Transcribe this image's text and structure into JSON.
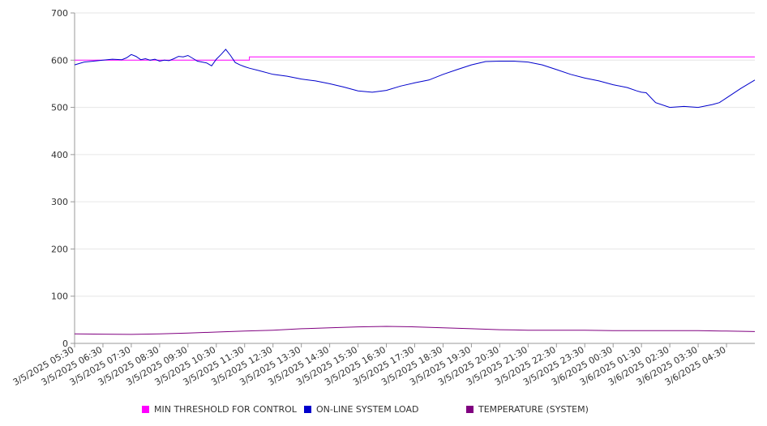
{
  "chart_data": {
    "type": "line",
    "ylim": [
      0,
      700
    ],
    "yticks": [
      0,
      100,
      200,
      300,
      400,
      500,
      600,
      700
    ],
    "grid": true,
    "legend_position": "bottom",
    "x_labels": [
      "3/5/2025 05:30",
      "3/5/2025 06:30",
      "3/5/2025 07:30",
      "3/5/2025 08:30",
      "3/5/2025 09:30",
      "3/5/2025 10:30",
      "3/5/2025 11:30",
      "3/5/2025 12:30",
      "3/5/2025 13:30",
      "3/5/2025 14:30",
      "3/5/2025 15:30",
      "3/5/2025 16:30",
      "3/5/2025 17:30",
      "3/5/2025 18:30",
      "3/5/2025 19:30",
      "3/5/2025 20:30",
      "3/5/2025 21:30",
      "3/5/2025 22:30",
      "3/5/2025 23:30",
      "3/6/2025 00:30",
      "3/6/2025 01:30",
      "3/6/2025 02:30",
      "3/6/2025 03:30",
      "3/6/2025 04:30"
    ],
    "x_range": [
      "3/5/2025 05:30",
      "3/6/2025 05:30"
    ],
    "series": [
      {
        "name": "MIN THRESHOLD FOR CONTROL",
        "color": "#ff00ff",
        "x": [
          "3/5/2025 05:30",
          "3/5/2025 11:40",
          "3/5/2025 11:40",
          "3/6/2025 05:30"
        ],
        "y": [
          600,
          600,
          607,
          607
        ]
      },
      {
        "name": "ON-LINE SYSTEM LOAD",
        "color": "#0000cc",
        "x": [
          "3/5/2025 05:30",
          "3/5/2025 05:50",
          "3/5/2025 06:10",
          "3/5/2025 06:30",
          "3/5/2025 06:50",
          "3/5/2025 07:10",
          "3/5/2025 07:20",
          "3/5/2025 07:30",
          "3/5/2025 07:40",
          "3/5/2025 07:50",
          "3/5/2025 08:00",
          "3/5/2025 08:10",
          "3/5/2025 08:20",
          "3/5/2025 08:30",
          "3/5/2025 08:40",
          "3/5/2025 08:50",
          "3/5/2025 09:00",
          "3/5/2025 09:10",
          "3/5/2025 09:20",
          "3/5/2025 09:30",
          "3/5/2025 09:40",
          "3/5/2025 09:50",
          "3/5/2025 10:00",
          "3/5/2025 10:10",
          "3/5/2025 10:20",
          "3/5/2025 10:30",
          "3/5/2025 10:40",
          "3/5/2025 10:50",
          "3/5/2025 11:00",
          "3/5/2025 11:10",
          "3/5/2025 11:20",
          "3/5/2025 11:30",
          "3/5/2025 11:40",
          "3/5/2025 12:00",
          "3/5/2025 12:30",
          "3/5/2025 13:00",
          "3/5/2025 13:30",
          "3/5/2025 14:00",
          "3/5/2025 14:30",
          "3/5/2025 15:00",
          "3/5/2025 15:30",
          "3/5/2025 16:00",
          "3/5/2025 16:30",
          "3/5/2025 17:00",
          "3/5/2025 17:30",
          "3/5/2025 18:00",
          "3/5/2025 18:30",
          "3/5/2025 19:00",
          "3/5/2025 19:30",
          "3/5/2025 20:00",
          "3/5/2025 20:30",
          "3/5/2025 21:00",
          "3/5/2025 21:30",
          "3/5/2025 22:00",
          "3/5/2025 22:30",
          "3/5/2025 23:00",
          "3/5/2025 23:30",
          "3/6/2025 00:00",
          "3/6/2025 00:30",
          "3/6/2025 01:00",
          "3/6/2025 01:20",
          "3/6/2025 01:30",
          "3/6/2025 01:40",
          "3/6/2025 02:00",
          "3/6/2025 02:30",
          "3/6/2025 03:00",
          "3/6/2025 03:30",
          "3/6/2025 04:00",
          "3/6/2025 04:15",
          "3/6/2025 04:30",
          "3/6/2025 05:00",
          "3/6/2025 05:30"
        ],
        "y": [
          590,
          596,
          598,
          600,
          602,
          601,
          605,
          612,
          608,
          601,
          603,
          600,
          602,
          598,
          600,
          599,
          603,
          608,
          607,
          610,
          604,
          598,
          596,
          594,
          588,
          602,
          612,
          623,
          610,
          595,
          590,
          586,
          583,
          578,
          570,
          566,
          560,
          556,
          550,
          543,
          535,
          532,
          536,
          545,
          552,
          558,
          570,
          580,
          590,
          597,
          598,
          598,
          596,
          590,
          580,
          570,
          562,
          556,
          548,
          542,
          535,
          532,
          531,
          510,
          500,
          502,
          500,
          506,
          510,
          520,
          540,
          558
        ]
      },
      {
        "name": "TEMPERATURE (SYSTEM)",
        "color": "#800080",
        "x": [
          "3/5/2025 05:30",
          "3/5/2025 07:30",
          "3/5/2025 08:30",
          "3/5/2025 09:30",
          "3/5/2025 10:30",
          "3/5/2025 11:30",
          "3/5/2025 12:30",
          "3/5/2025 13:30",
          "3/5/2025 14:30",
          "3/5/2025 15:30",
          "3/5/2025 16:30",
          "3/5/2025 17:30",
          "3/5/2025 18:30",
          "3/5/2025 19:30",
          "3/5/2025 20:30",
          "3/5/2025 21:30",
          "3/5/2025 22:30",
          "3/5/2025 23:30",
          "3/6/2025 00:30",
          "3/6/2025 01:30",
          "3/6/2025 02:30",
          "3/6/2025 03:30",
          "3/6/2025 04:30",
          "3/6/2025 05:30"
        ],
        "y": [
          20,
          19,
          20,
          22,
          24,
          26,
          28,
          31,
          33,
          35,
          36,
          35,
          33,
          31,
          29,
          28,
          28,
          28,
          27,
          27,
          27,
          27,
          26,
          25
        ]
      }
    ]
  }
}
